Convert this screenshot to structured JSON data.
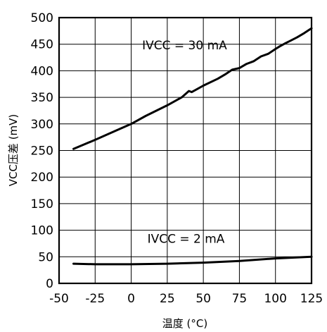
{
  "chart_data": {
    "type": "line",
    "title": "",
    "xlabel": "温度 (°C)",
    "ylabel": "VCC压差 (mV)",
    "xlim": [
      -50,
      125
    ],
    "ylim": [
      0,
      500
    ],
    "x_ticks": [
      -50,
      -25,
      0,
      25,
      50,
      75,
      100,
      125
    ],
    "y_ticks": [
      0,
      50,
      100,
      150,
      200,
      250,
      300,
      350,
      400,
      450,
      500
    ],
    "grid": true,
    "annotations": [
      {
        "text": "IVCC = 30 mA",
        "x": 37,
        "y": 440
      },
      {
        "text": "IVCC = 2 mA",
        "x": 38,
        "y": 76
      }
    ],
    "series": [
      {
        "x": [
          -40,
          -25,
          -10,
          0,
          10,
          25,
          35,
          38,
          40,
          42,
          50,
          60,
          65,
          70,
          75,
          80,
          85,
          90,
          95,
          100,
          103,
          107,
          110,
          115,
          120,
          125
        ],
        "y": [
          253,
          270,
          288,
          300,
          315,
          335,
          350,
          357,
          362,
          360,
          372,
          385,
          393,
          402,
          405,
          413,
          418,
          427,
          432,
          441,
          446,
          452,
          456,
          463,
          471,
          480
        ]
      },
      {
        "x": [
          -40,
          -25,
          0,
          25,
          50,
          75,
          100,
          125
        ],
        "y": [
          37,
          36,
          36,
          37,
          39,
          42,
          47,
          50
        ]
      }
    ]
  }
}
